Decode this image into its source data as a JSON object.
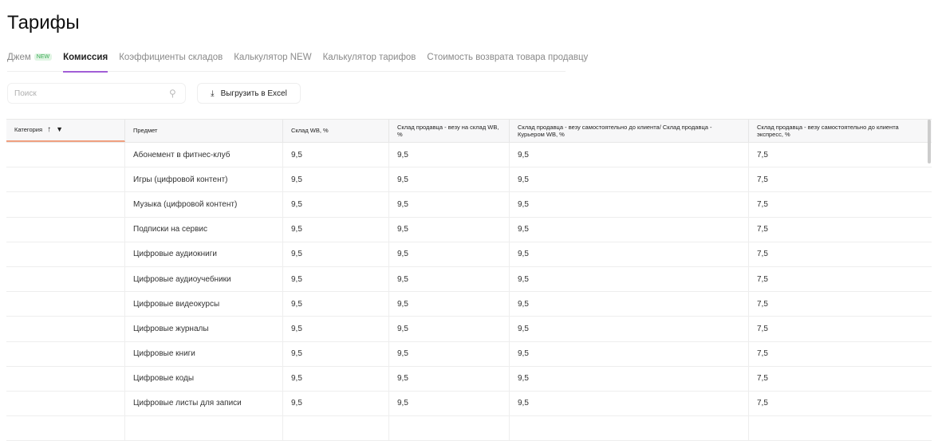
{
  "title": "Тарифы",
  "tabs": [
    {
      "label": "Джем",
      "badge": "NEW"
    },
    {
      "label": "Комиссия",
      "active": true
    },
    {
      "label": "Коэффициенты складов"
    },
    {
      "label": "Калькулятор NEW"
    },
    {
      "label": "Калькулятор тарифов"
    },
    {
      "label": "Стоимость возврата товара продавцу"
    }
  ],
  "search": {
    "placeholder": "Поиск"
  },
  "excel_label": "Выгрузить в Excel",
  "columns": [
    "Категория",
    "Предмет",
    "Склад WB, %",
    "Склад продавца - везу на склад WB, %",
    "Склад продавца - везу самостоятельно до клиента/ Склад продавца - Курьером WB, %",
    "Склад продавца - везу самостоятельно до клиента экспресс, %"
  ],
  "rows": [
    [
      "",
      "Абонемент в фитнес-клуб",
      "9,5",
      "9,5",
      "9,5",
      "7,5"
    ],
    [
      "",
      "Игры (цифровой контент)",
      "9,5",
      "9,5",
      "9,5",
      "7,5"
    ],
    [
      "",
      "Музыка (цифровой контент)",
      "9,5",
      "9,5",
      "9,5",
      "7,5"
    ],
    [
      "",
      "Подписки на сервис",
      "9,5",
      "9,5",
      "9,5",
      "7,5"
    ],
    [
      "",
      "Цифровые аудиокниги",
      "9,5",
      "9,5",
      "9,5",
      "7,5"
    ],
    [
      "",
      "Цифровые аудиоучебники",
      "9,5",
      "9,5",
      "9,5",
      "7,5"
    ],
    [
      "",
      "Цифровые видеокурсы",
      "9,5",
      "9,5",
      "9,5",
      "7,5"
    ],
    [
      "",
      "Цифровые журналы",
      "9,5",
      "9,5",
      "9,5",
      "7,5"
    ],
    [
      "",
      "Цифровые книги",
      "9,5",
      "9,5",
      "9,5",
      "7,5"
    ],
    [
      "",
      "Цифровые коды",
      "9,5",
      "9,5",
      "9,5",
      "7,5"
    ],
    [
      "",
      "Цифровые листы для записи",
      "9,5",
      "9,5",
      "9,5",
      "7,5"
    ],
    [
      "",
      "",
      "",
      "",
      "",
      ""
    ]
  ]
}
